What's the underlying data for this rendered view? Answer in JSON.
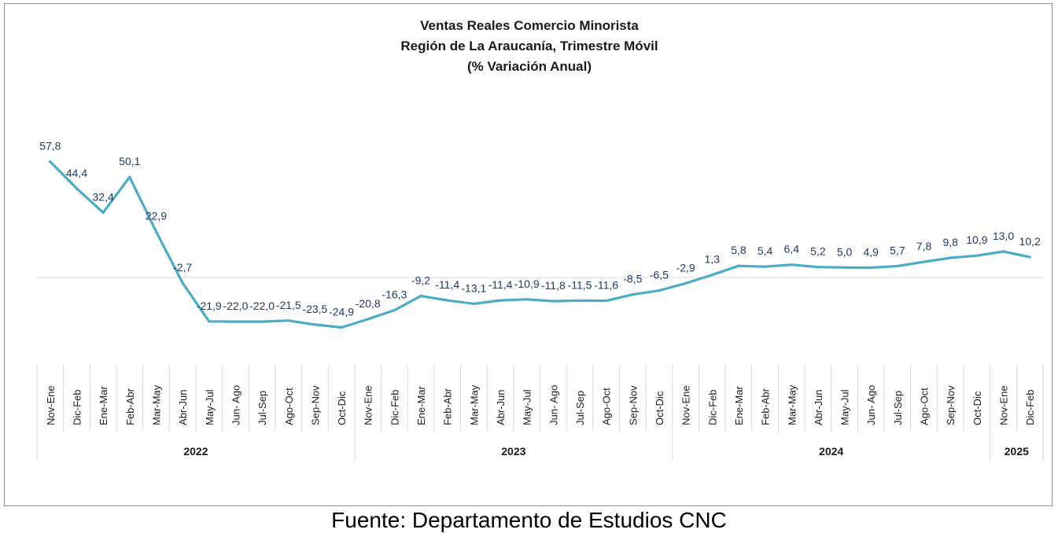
{
  "chart_data": {
    "type": "line",
    "title_lines": [
      "Ventas Reales Comercio Minorista",
      "Región de La Araucanía, Trimestre Móvil",
      "(% Variación Anual)"
    ],
    "categories": [
      "Nov-Ene",
      "Dic-Feb",
      "Ene-Mar",
      "Feb-Abr",
      "Mar-May",
      "Abr-Jun",
      "May-Jul",
      "Jun- Ago",
      "Jul-Sep",
      "Ago-Oct",
      "Sep-Nov",
      "Oct-Dic",
      "Nov-Ene",
      "Dic-Feb",
      "Ene-Mar",
      "Feb-Abr",
      "Mar-May",
      "Abr-Jun",
      "May-Jul",
      "Jun- Ago",
      "Jul-Sep",
      "Ago-Oct",
      "Sep-Nov",
      "Oct-Dic",
      "Nov-Ene",
      "Dic-Feb",
      "Ene-Mar",
      "Feb-Abr",
      "Mar-May",
      "Abr-Jun",
      "May-Jul",
      "Jun- Ago",
      "Jul-Sep",
      "Ago-Oct",
      "Sep-Nov",
      "Oct-Dic",
      "Nov-Ene",
      "Dic-Feb"
    ],
    "values": [
      57.8,
      44.4,
      32.4,
      50.1,
      22.9,
      -2.7,
      -21.9,
      -22.0,
      -22.0,
      -21.5,
      -23.5,
      -24.9,
      -20.8,
      -16.3,
      -9.2,
      -11.4,
      -13.1,
      -11.4,
      -10.9,
      -11.8,
      -11.5,
      -11.6,
      -8.5,
      -6.5,
      -2.9,
      1.3,
      5.8,
      5.4,
      6.4,
      5.2,
      5.0,
      4.9,
      5.7,
      7.8,
      9.8,
      10.9,
      13.0,
      10.2
    ],
    "value_labels": [
      "57,8",
      "44,4",
      "32,4",
      "50,1",
      "22,9",
      "-2,7",
      "-21,9",
      "-22,0",
      "-22,0",
      "-21,5",
      "-23,5",
      "-24,9",
      "-20,8",
      "-16,3",
      "-9,2",
      "-11,4",
      "-13,1",
      "-11,4",
      "-10,9",
      "-11,8",
      "-11,5",
      "-11,6",
      "-8,5",
      "-6,5",
      "-2,9",
      "1,3",
      "5,8",
      "5,4",
      "6,4",
      "5,2",
      "5,0",
      "4,9",
      "5,7",
      "7,8",
      "9,8",
      "10,9",
      "13,0",
      "10,2"
    ],
    "year_groups": [
      {
        "label": "2022",
        "count": 12
      },
      {
        "label": "2023",
        "count": 12
      },
      {
        "label": "2024",
        "count": 12
      },
      {
        "label": "2025",
        "count": 2
      }
    ],
    "line_color": "#4bacc6",
    "label_color": "#1f3864",
    "axis_color": "#d9d9d9",
    "grid": false,
    "legend": "none"
  },
  "source_note": "Fuente: Departamento de Estudios CNC"
}
